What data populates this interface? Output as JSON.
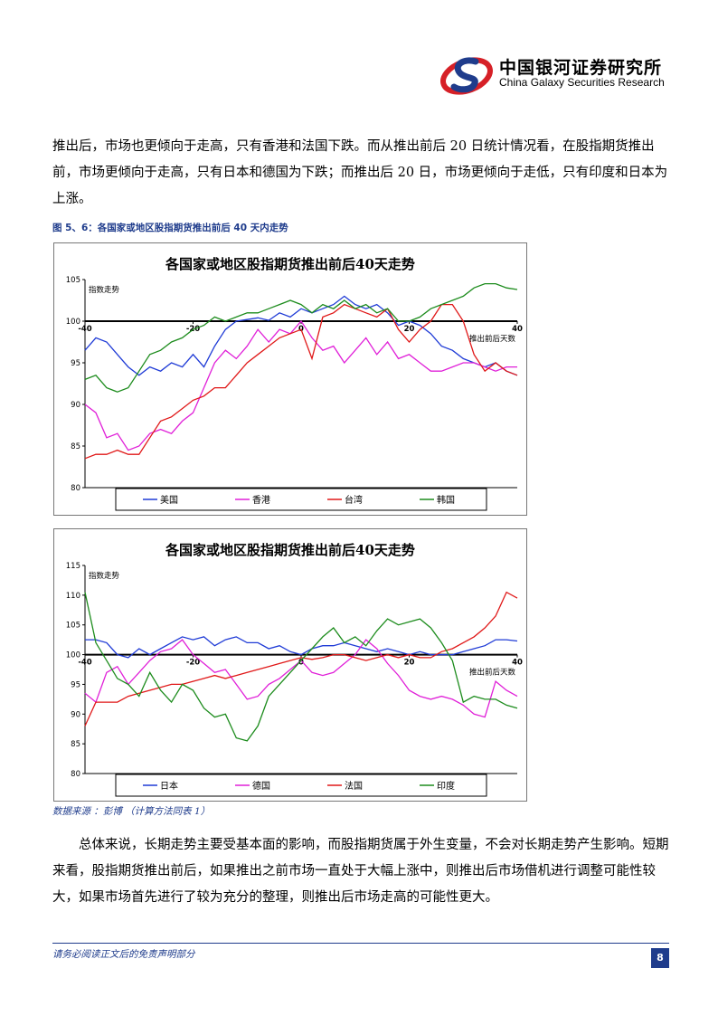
{
  "header": {
    "logo_cn": "中国银河证券研究所",
    "logo_en": "China Galaxy Securities Research",
    "logo_color": "#d62027",
    "logo_accent": "#1f3c8c"
  },
  "body": {
    "paragraph1": "推出后，市场也更倾向于走高，只有香港和法国下跌。而从推出前后 20 日统计情况看，在股指期货推出前，市场更倾向于走高，只有日本和德国为下跌；而推出后 20 日，市场更倾向于走低，只有印度和日本为上涨。",
    "figure_caption": "图 5、6：各国家或地区股指期货推出前后 40 天内走势",
    "source": "数据来源 ：彭博 （计算方法同表 1）",
    "paragraph2": "总体来说，长期走势主要受基本面的影响，而股指期货属于外生变量，不会对长期走势产生影响。短期来看，股指期货推出前后，如果推出之前市场一直处于大幅上涨中，则推出后市场借机进行调整可能性较大，如果市场首先进行了较为充分的整理，则推出后市场走高的可能性更大。"
  },
  "footer": {
    "disclaimer": "请务必阅读正文后的免责声明部分",
    "page_number": "8"
  },
  "chart_data": [
    {
      "type": "line",
      "title": "各国家或地区股指期货推出前后40天走势",
      "ylabel": "指数走势",
      "xlabel": "推出前后天数",
      "xlim": [
        -40,
        40
      ],
      "ylim": [
        80,
        105
      ],
      "yticks": [
        80,
        85,
        90,
        95,
        100,
        105
      ],
      "xticks": [
        -40,
        -20,
        0,
        20,
        40
      ],
      "baseline": 100,
      "legend_position": "bottom",
      "series": [
        {
          "name": "美国",
          "color": "#1f3bd6",
          "x": [
            -40,
            -38,
            -36,
            -34,
            -32,
            -30,
            -28,
            -26,
            -24,
            -22,
            -20,
            -18,
            -16,
            -14,
            -12,
            -10,
            -8,
            -6,
            -4,
            -2,
            0,
            2,
            4,
            6,
            8,
            10,
            12,
            14,
            16,
            18,
            20,
            22,
            24,
            26,
            28,
            30,
            32,
            34,
            36,
            38,
            40
          ],
          "y": [
            96.5,
            98,
            97.5,
            96,
            94.5,
            93.5,
            94.5,
            94,
            95,
            94.5,
            96,
            94.5,
            97,
            99,
            100,
            100.2,
            100.4,
            100.1,
            101,
            100.5,
            101.5,
            101,
            101.5,
            102,
            103,
            102,
            101.5,
            102,
            101,
            99.5,
            100,
            99.5,
            98.5,
            97,
            96.5,
            95.5,
            95,
            94.5,
            95,
            94,
            93.5
          ]
        },
        {
          "name": "香港",
          "color": "#e020d8",
          "x": [
            -40,
            -38,
            -36,
            -34,
            -32,
            -30,
            -28,
            -26,
            -24,
            -22,
            -20,
            -18,
            -16,
            -14,
            -12,
            -10,
            -8,
            -6,
            -4,
            -2,
            0,
            2,
            4,
            6,
            8,
            10,
            12,
            14,
            16,
            18,
            20,
            22,
            24,
            26,
            28,
            30,
            32,
            34,
            36,
            38,
            40
          ],
          "y": [
            90,
            89,
            86,
            86.5,
            84.5,
            85,
            86.5,
            87,
            86.5,
            88,
            89,
            92,
            95,
            96.5,
            95.5,
            97,
            99,
            97.5,
            99,
            98.5,
            100,
            98,
            96.5,
            97,
            95,
            96.5,
            98,
            96,
            97.5,
            95.5,
            96,
            95,
            94,
            94,
            94.5,
            95,
            95,
            94.5,
            94,
            94.5,
            94.5
          ]
        },
        {
          "name": "台湾",
          "color": "#e01818",
          "x": [
            -40,
            -38,
            -36,
            -34,
            -32,
            -30,
            -28,
            -26,
            -24,
            -22,
            -20,
            -18,
            -16,
            -14,
            -12,
            -10,
            -8,
            -6,
            -4,
            -2,
            0,
            2,
            4,
            6,
            8,
            10,
            12,
            14,
            16,
            18,
            20,
            22,
            24,
            26,
            28,
            30,
            32,
            34,
            36,
            38,
            40
          ],
          "y": [
            83.5,
            84,
            84,
            84.5,
            84,
            84,
            86,
            88,
            88.5,
            89.5,
            90.5,
            91,
            92,
            92,
            93.5,
            95,
            96,
            97,
            98,
            98.5,
            99,
            95.5,
            100.5,
            101,
            102,
            101.5,
            101,
            100.5,
            101.5,
            99,
            97.5,
            99,
            100,
            102,
            102,
            100,
            96,
            94,
            95,
            94,
            93.5
          ]
        },
        {
          "name": "韩国",
          "color": "#1d8c1d",
          "x": [
            -40,
            -38,
            -36,
            -34,
            -32,
            -30,
            -28,
            -26,
            -24,
            -22,
            -20,
            -18,
            -16,
            -14,
            -12,
            -10,
            -8,
            -6,
            -4,
            -2,
            0,
            2,
            4,
            6,
            8,
            10,
            12,
            14,
            16,
            18,
            20,
            22,
            24,
            26,
            28,
            30,
            32,
            34,
            36,
            38,
            40
          ],
          "y": [
            93,
            93.5,
            92,
            91.5,
            92,
            94,
            96,
            96.5,
            97.5,
            98,
            99,
            99.5,
            100.5,
            100,
            100.5,
            101,
            101,
            101.5,
            102,
            102.5,
            102,
            101,
            102,
            101.5,
            102.5,
            101.5,
            102,
            101,
            101.5,
            100,
            100,
            100.5,
            101.5,
            102,
            102.5,
            103,
            104,
            104.5,
            104.5,
            104,
            103.8
          ]
        }
      ]
    },
    {
      "type": "line",
      "title": "各国家或地区股指期货推出前后40天走势",
      "ylabel": "指数走势",
      "xlabel": "推出前后天数",
      "xlim": [
        -40,
        40
      ],
      "ylim": [
        80,
        115
      ],
      "yticks": [
        80,
        85,
        90,
        95,
        100,
        105,
        110,
        115
      ],
      "xticks": [
        -40,
        -20,
        0,
        20,
        40
      ],
      "baseline": 100,
      "legend_position": "bottom",
      "series": [
        {
          "name": "日本",
          "color": "#1f3bd6",
          "x": [
            -40,
            -38,
            -36,
            -34,
            -32,
            -30,
            -28,
            -26,
            -24,
            -22,
            -20,
            -18,
            -16,
            -14,
            -12,
            -10,
            -8,
            -6,
            -4,
            -2,
            0,
            2,
            4,
            6,
            8,
            10,
            12,
            14,
            16,
            18,
            20,
            22,
            24,
            26,
            28,
            30,
            32,
            34,
            36,
            38,
            40
          ],
          "y": [
            102.5,
            102.5,
            102,
            100,
            99.5,
            101,
            100,
            101,
            102,
            103,
            102.5,
            103,
            101.5,
            102.5,
            103,
            102,
            102,
            101,
            101.5,
            100.5,
            100,
            101,
            101.5,
            101.5,
            102,
            101.5,
            101,
            100.5,
            101,
            100.5,
            100,
            100.5,
            100,
            100,
            100,
            100.5,
            101,
            101.5,
            102.5,
            102.5,
            102.3
          ]
        },
        {
          "name": "德国",
          "color": "#e020d8",
          "x": [
            -40,
            -38,
            -36,
            -34,
            -32,
            -30,
            -28,
            -26,
            -24,
            -22,
            -20,
            -18,
            -16,
            -14,
            -12,
            -10,
            -8,
            -6,
            -4,
            -2,
            0,
            2,
            4,
            6,
            8,
            10,
            12,
            14,
            16,
            18,
            20,
            22,
            24,
            26,
            28,
            30,
            32,
            34,
            36,
            38,
            40
          ],
          "y": [
            93.5,
            92,
            97,
            98,
            95,
            97,
            99,
            100.5,
            101,
            102.5,
            100,
            98.5,
            97,
            97.5,
            95,
            92.5,
            93,
            95,
            96,
            97.5,
            99,
            97,
            96.5,
            97,
            98.5,
            100,
            102.5,
            101,
            98.5,
            96.5,
            94,
            93,
            92.5,
            93,
            92.5,
            91.5,
            90,
            89.5,
            95.5,
            94,
            93
          ]
        },
        {
          "name": "法国",
          "color": "#e01818",
          "x": [
            -40,
            -38,
            -36,
            -34,
            -32,
            -30,
            -28,
            -26,
            -24,
            -22,
            -20,
            -18,
            -16,
            -14,
            -12,
            -10,
            -8,
            -6,
            -4,
            -2,
            0,
            2,
            4,
            6,
            8,
            10,
            12,
            14,
            16,
            18,
            20,
            22,
            24,
            26,
            28,
            30,
            32,
            34,
            36,
            38,
            40
          ],
          "y": [
            88,
            92,
            92,
            92,
            93,
            93.5,
            94,
            94.5,
            95,
            95,
            95.5,
            96,
            96.5,
            96,
            96.5,
            97,
            97.5,
            98,
            98.5,
            99,
            99.5,
            99.2,
            99.5,
            100,
            100,
            99.5,
            99,
            99.5,
            100,
            99.5,
            100,
            99.5,
            99.5,
            100.5,
            101,
            102,
            103,
            104.5,
            106.5,
            110.5,
            109.5
          ]
        },
        {
          "name": "印度",
          "color": "#1d8c1d",
          "x": [
            -40,
            -38,
            -36,
            -34,
            -32,
            -30,
            -28,
            -26,
            -24,
            -22,
            -20,
            -18,
            -16,
            -14,
            -12,
            -10,
            -8,
            -6,
            -4,
            -2,
            0,
            2,
            4,
            6,
            8,
            10,
            12,
            14,
            16,
            18,
            20,
            22,
            24,
            26,
            28,
            30,
            32,
            34,
            36,
            38,
            40
          ],
          "y": [
            110.5,
            102,
            99,
            96,
            95,
            93,
            97,
            94,
            92,
            95,
            94,
            91,
            89.5,
            90,
            86,
            85.5,
            88,
            93,
            95,
            97,
            99,
            101,
            103,
            104.5,
            102,
            103,
            101.5,
            104,
            106,
            105,
            105.5,
            106,
            104.5,
            102,
            99,
            92,
            93,
            92.5,
            92.5,
            91.5,
            91
          ]
        }
      ]
    }
  ]
}
